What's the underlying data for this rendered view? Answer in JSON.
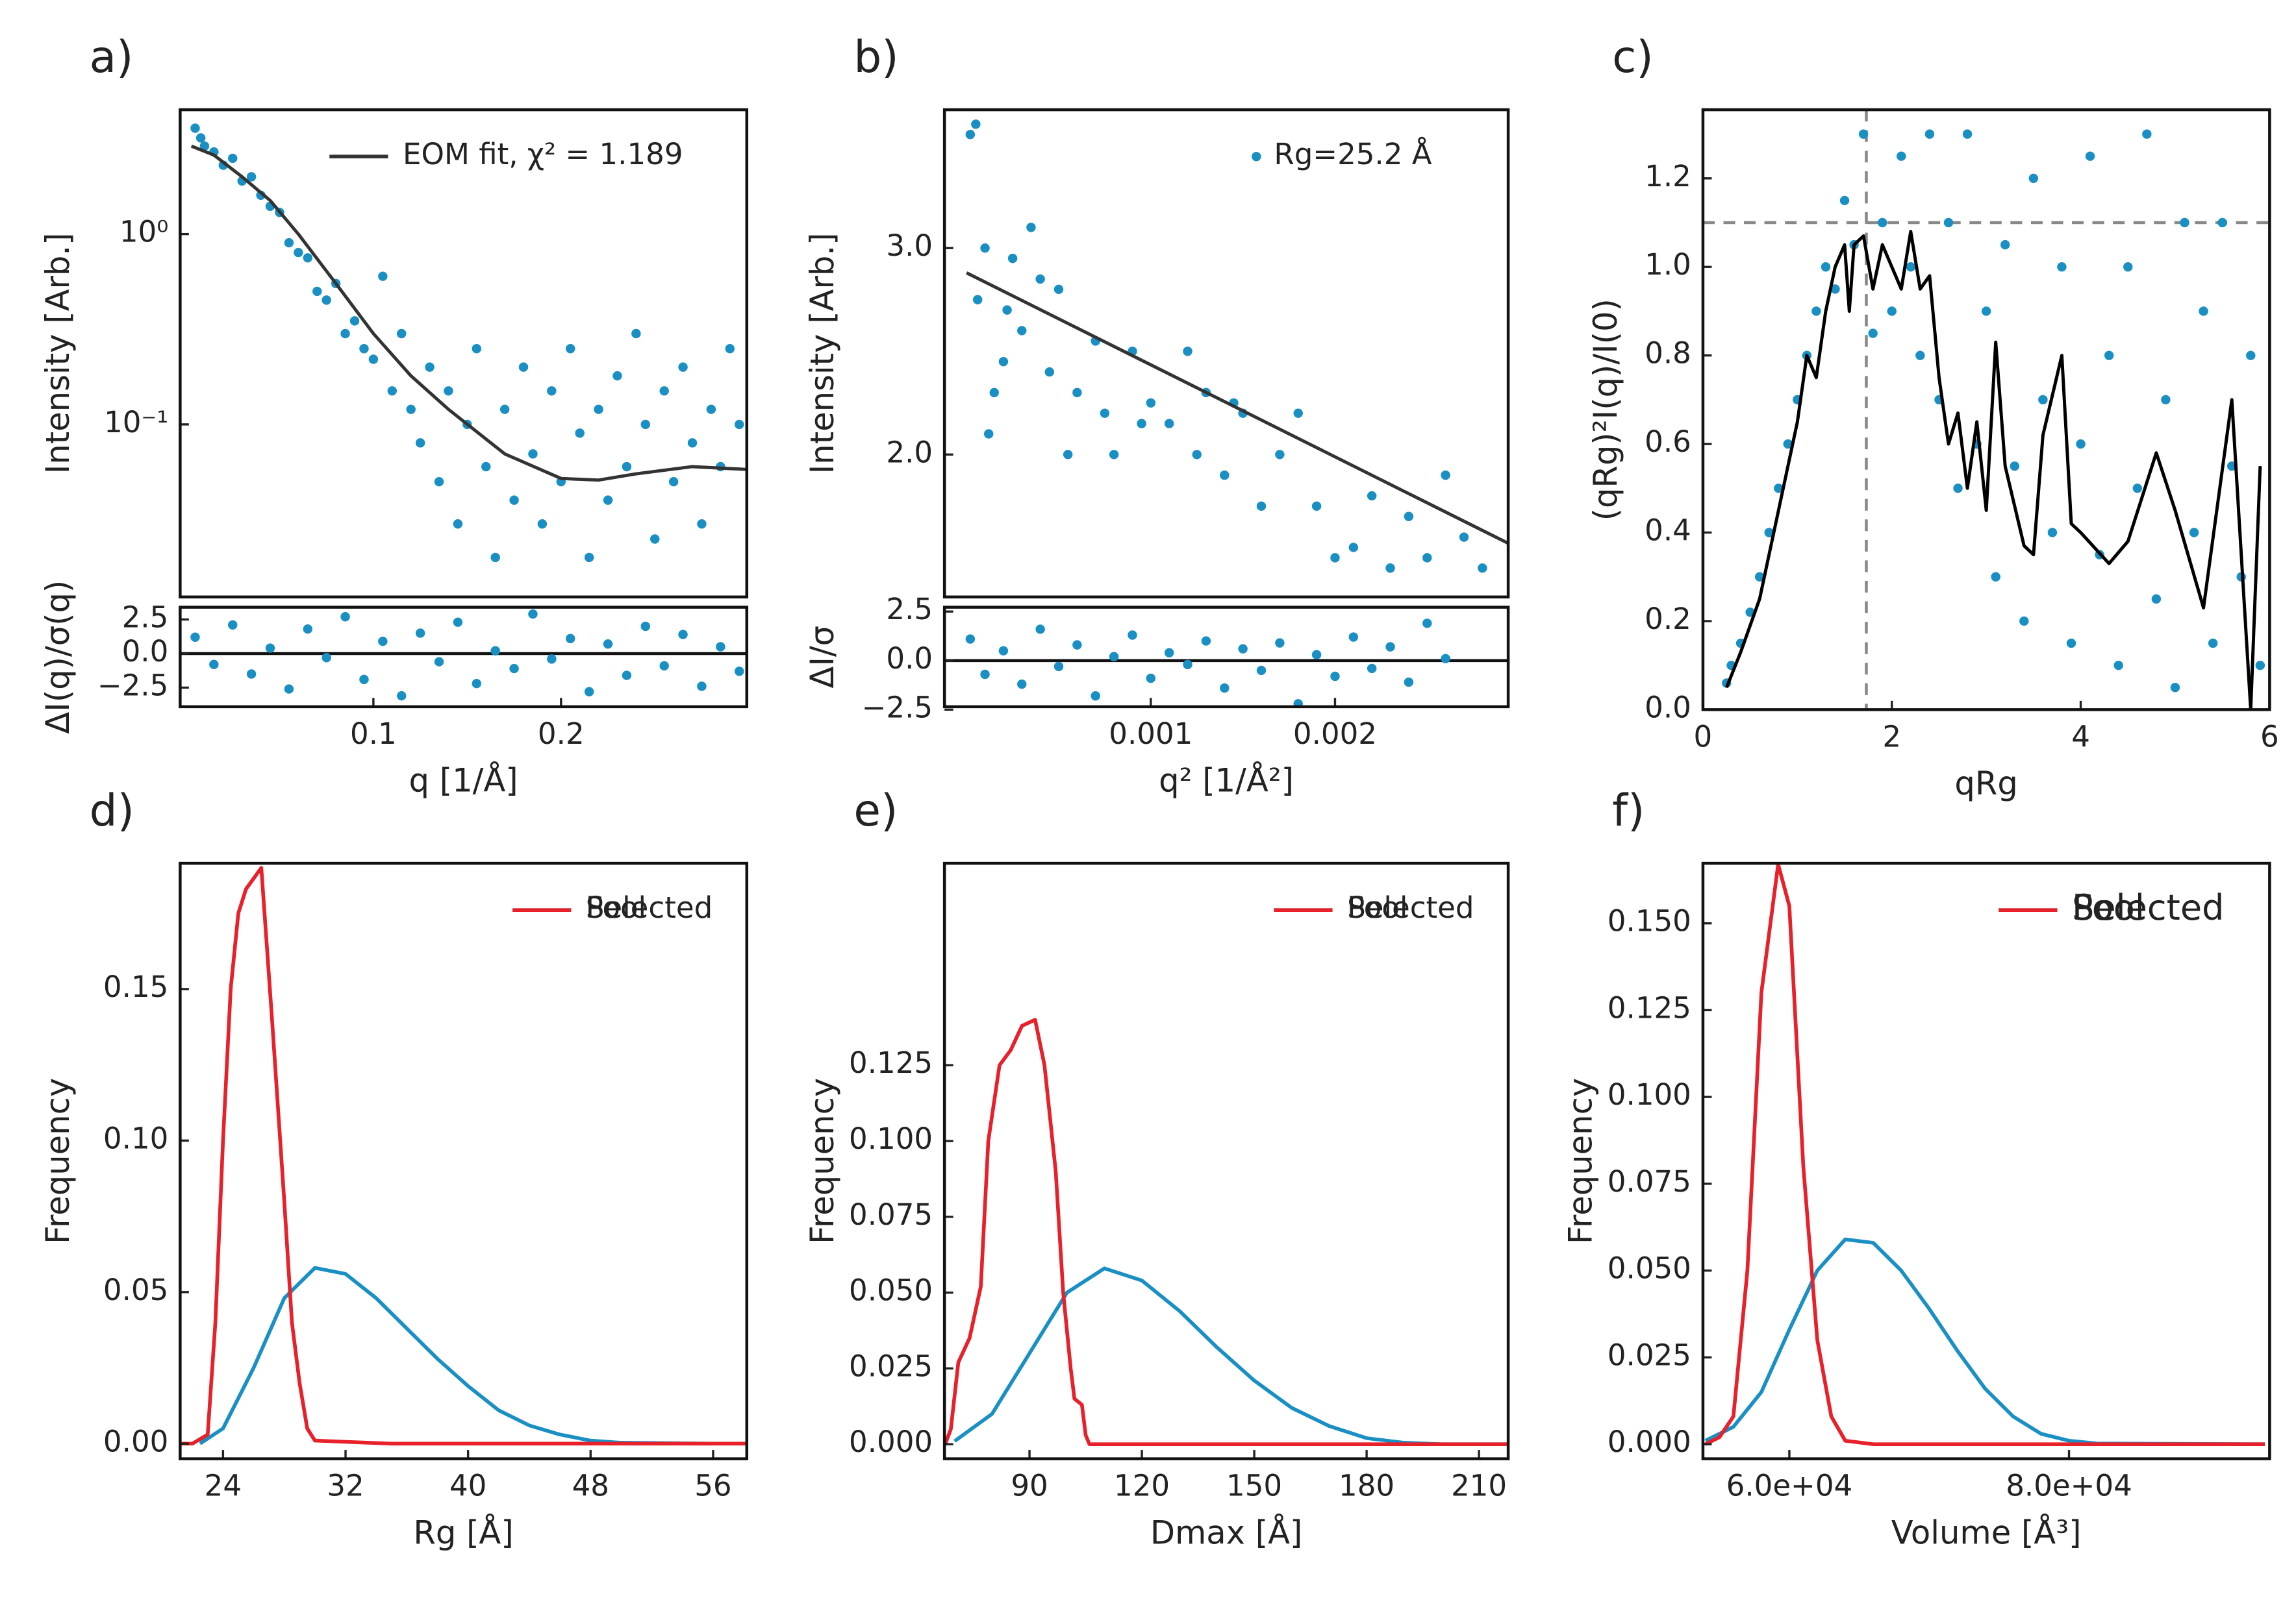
{
  "chart_data": [
    {
      "type": "scatter",
      "panel": "a)",
      "ylabel": "Intensity [Arb.]",
      "yscale": "log",
      "xlim": [
        -0.003,
        0.299
      ],
      "ylim": [
        0.0124,
        4.5
      ],
      "yticks": [
        {
          "value": 1,
          "label": "10⁰"
        },
        {
          "value": 0.1,
          "label": "10⁻¹"
        }
      ],
      "legend": "upper right",
      "series": [
        {
          "type": "scatter",
          "color": "#1a8fc4",
          "x": [
            0.005,
            0.008,
            0.01,
            0.015,
            0.02,
            0.025,
            0.03,
            0.035,
            0.04,
            0.045,
            0.05,
            0.055,
            0.06,
            0.065,
            0.07,
            0.075,
            0.08,
            0.085,
            0.09,
            0.095,
            0.1,
            0.105,
            0.11,
            0.115,
            0.12,
            0.125,
            0.13,
            0.135,
            0.14,
            0.145,
            0.15,
            0.155,
            0.16,
            0.165,
            0.17,
            0.175,
            0.18,
            0.185,
            0.19,
            0.195,
            0.2,
            0.205,
            0.21,
            0.215,
            0.22,
            0.225,
            0.23,
            0.235,
            0.24,
            0.245,
            0.25,
            0.255,
            0.26,
            0.265,
            0.27,
            0.275,
            0.28,
            0.285,
            0.29,
            0.295
          ],
          "values": [
            3.6,
            3.2,
            2.9,
            2.7,
            2.3,
            2.5,
            1.9,
            2.0,
            1.6,
            1.4,
            1.3,
            0.9,
            0.8,
            0.75,
            0.5,
            0.45,
            0.55,
            0.3,
            0.35,
            0.25,
            0.22,
            0.6,
            0.15,
            0.3,
            0.12,
            0.08,
            0.2,
            0.05,
            0.15,
            0.03,
            0.1,
            0.25,
            0.06,
            0.02,
            0.12,
            0.04,
            0.2,
            0.07,
            0.03,
            0.15,
            0.05,
            0.25,
            0.09,
            0.02,
            0.12,
            0.04,
            0.18,
            0.06,
            0.3,
            0.1,
            0.025,
            0.15,
            0.05,
            0.2,
            0.08,
            0.03,
            0.12,
            0.06,
            0.25,
            0.1
          ]
        },
        {
          "type": "line",
          "name": "EOM fit, χ² = 1.189",
          "color": "#333333",
          "x": [
            0.003,
            0.015,
            0.03,
            0.045,
            0.06,
            0.08,
            0.1,
            0.12,
            0.14,
            0.17,
            0.2,
            0.22,
            0.24,
            0.27,
            0.299
          ],
          "values": [
            2.9,
            2.6,
            2.0,
            1.5,
            1.0,
            0.55,
            0.3,
            0.18,
            0.12,
            0.07,
            0.052,
            0.051,
            0.055,
            0.06,
            0.058
          ]
        }
      ]
    },
    {
      "type": "scatter",
      "ylabel": "ΔI(q)/σ(q)",
      "xlabel": "q [1/Å]",
      "xlim": [
        -0.003,
        0.299
      ],
      "ylim": [
        -3.9,
        3.4
      ],
      "xticks": [
        0.1,
        0.2
      ],
      "yticks": [
        2.5,
        {
          "value": 0,
          "label": "0.0"
        },
        {
          "value": -2.5,
          "label": "−2.5"
        }
      ],
      "hline": 0,
      "series": [
        {
          "type": "scatter",
          "color": "#1a8fc4",
          "x": [
            0.005,
            0.015,
            0.025,
            0.035,
            0.045,
            0.055,
            0.065,
            0.075,
            0.085,
            0.095,
            0.105,
            0.115,
            0.125,
            0.135,
            0.145,
            0.155,
            0.165,
            0.175,
            0.185,
            0.195,
            0.205,
            0.215,
            0.225,
            0.235,
            0.245,
            0.255,
            0.265,
            0.275,
            0.285,
            0.295
          ],
          "values": [
            1.2,
            -0.8,
            2.1,
            -1.5,
            0.4,
            -2.6,
            1.8,
            -0.3,
            2.7,
            -1.9,
            0.9,
            -3.1,
            1.5,
            -0.6,
            2.3,
            -2.2,
            0.2,
            -1.1,
            2.9,
            -0.4,
            1.1,
            -2.8,
            0.7,
            -1.6,
            2.0,
            -0.9,
            1.4,
            -2.4,
            0.5,
            -1.3
          ]
        }
      ]
    },
    {
      "type": "scatter",
      "panel": "b)",
      "ylabel": "Intensity [Arb.]",
      "xlim": [
        -0.00012,
        0.00294
      ],
      "ylim": [
        1.31,
        3.67
      ],
      "yticks": [
        {
          "value": 3,
          "label": "3.0"
        },
        {
          "value": 2,
          "label": "2.0"
        }
      ],
      "legend": "upper right",
      "series": [
        {
          "type": "scatter",
          "name": "Rg=25.2 Å",
          "color": "#1a8fc4",
          "x": [
            2e-05,
            5e-05,
            6e-05,
            0.0001,
            0.00012,
            0.00015,
            0.0002,
            0.00022,
            0.00025,
            0.0003,
            0.00035,
            0.0004,
            0.00045,
            0.0005,
            0.00055,
            0.0006,
            0.0007,
            0.00075,
            0.0008,
            0.0009,
            0.00095,
            0.001,
            0.0011,
            0.0012,
            0.00125,
            0.0013,
            0.0014,
            0.00145,
            0.0015,
            0.0016,
            0.0017,
            0.0018,
            0.0019,
            0.002,
            0.0021,
            0.0022,
            0.0023,
            0.0024,
            0.0025,
            0.0026,
            0.0027,
            0.0028
          ],
          "values": [
            3.55,
            3.6,
            2.75,
            3.0,
            2.1,
            2.3,
            2.45,
            2.7,
            2.95,
            2.6,
            3.1,
            2.85,
            2.4,
            2.8,
            2.0,
            2.3,
            2.55,
            2.2,
            2.0,
            2.5,
            2.15,
            2.25,
            2.15,
            2.5,
            2.0,
            2.3,
            1.9,
            2.25,
            2.2,
            1.75,
            2.0,
            2.2,
            1.75,
            1.5,
            1.55,
            1.8,
            1.45,
            1.7,
            1.5,
            1.9,
            1.6,
            1.45
          ]
        },
        {
          "type": "line",
          "color": "#333333",
          "x": [
            0,
            0.00294
          ],
          "values": [
            2.88,
            1.57
          ]
        }
      ]
    },
    {
      "type": "scatter",
      "ylabel": "ΔI/σ",
      "xlabel": "q² [1/Å²]",
      "xlim": [
        -0.00012,
        0.00294
      ],
      "ylim": [
        -2.35,
        2.72
      ],
      "xticks": [
        0.001,
        0.002
      ],
      "yticks": [
        2.5,
        {
          "value": 0,
          "label": "0.0"
        },
        {
          "value": -2.5,
          "label": "−2.5"
        }
      ],
      "hline": 0,
      "series": [
        {
          "type": "scatter",
          "color": "#1a8fc4",
          "x": [
            2e-05,
            0.0001,
            0.0002,
            0.0003,
            0.0004,
            0.0005,
            0.0006,
            0.0007,
            0.0008,
            0.0009,
            0.001,
            0.0011,
            0.0012,
            0.0013,
            0.0014,
            0.0015,
            0.0016,
            0.0017,
            0.0018,
            0.0019,
            0.002,
            0.0021,
            0.0022,
            0.0023,
            0.0024,
            0.0025,
            0.0026
          ],
          "values": [
            1.1,
            -0.7,
            0.5,
            -1.2,
            1.6,
            -0.3,
            0.8,
            -1.8,
            0.2,
            1.3,
            -0.9,
            0.4,
            -0.2,
            1.0,
            -1.4,
            0.6,
            -0.5,
            0.9,
            -2.2,
            0.3,
            -0.8,
            1.2,
            -0.4,
            0.7,
            -1.1,
            1.9,
            0.1
          ]
        }
      ]
    },
    {
      "type": "scatter",
      "panel": "c)",
      "ylabel": "(qRg)²I(q)/I(0)",
      "xlabel": "qRg",
      "xlim": [
        0,
        6
      ],
      "ylim": [
        0,
        1.355
      ],
      "xticks": [
        0,
        2,
        4,
        6
      ],
      "yticks": [
        {
          "value": 0,
          "label": "0.0"
        },
        0.2,
        0.4,
        0.6,
        0.8,
        {
          "value": 1,
          "label": "1.0"
        },
        1.2
      ],
      "hline": 1.1,
      "vline": 1.73,
      "dashed": true,
      "series": [
        {
          "type": "scatter",
          "color": "#1a8fc4",
          "x": [
            0.25,
            0.3,
            0.4,
            0.5,
            0.6,
            0.7,
            0.8,
            0.9,
            1.0,
            1.1,
            1.2,
            1.3,
            1.4,
            1.5,
            1.6,
            1.7,
            1.8,
            1.9,
            2.0,
            2.1,
            2.2,
            2.3,
            2.4,
            2.5,
            2.6,
            2.7,
            2.8,
            2.9,
            3.0,
            3.1,
            3.2,
            3.3,
            3.4,
            3.5,
            3.6,
            3.7,
            3.8,
            3.9,
            4.0,
            4.1,
            4.2,
            4.3,
            4.4,
            4.5,
            4.6,
            4.7,
            4.8,
            4.9,
            5.0,
            5.1,
            5.2,
            5.3,
            5.4,
            5.5,
            5.6,
            5.7,
            5.8,
            5.9
          ],
          "values": [
            0.06,
            0.1,
            0.15,
            0.22,
            0.3,
            0.4,
            0.5,
            0.6,
            0.7,
            0.8,
            0.9,
            1.0,
            0.95,
            1.15,
            1.05,
            1.3,
            0.85,
            1.1,
            0.9,
            1.25,
            1.0,
            0.8,
            1.3,
            0.7,
            1.1,
            0.5,
            1.3,
            0.6,
            0.9,
            0.3,
            1.05,
            0.55,
            0.2,
            1.2,
            0.7,
            0.4,
            1.0,
            0.15,
            0.6,
            1.25,
            0.35,
            0.8,
            0.1,
            1.0,
            0.5,
            1.3,
            0.25,
            0.7,
            0.05,
            1.1,
            0.4,
            0.9,
            0.15,
            1.1,
            0.55,
            0.3,
            0.8,
            0.1
          ]
        },
        {
          "type": "line",
          "color": "#000000",
          "x": [
            0.25,
            0.4,
            0.6,
            0.8,
            1.0,
            1.1,
            1.2,
            1.3,
            1.4,
            1.5,
            1.55,
            1.6,
            1.7,
            1.8,
            1.9,
            2.0,
            2.1,
            2.2,
            2.3,
            2.4,
            2.5,
            2.6,
            2.7,
            2.8,
            2.9,
            3.0,
            3.1,
            3.2,
            3.4,
            3.5,
            3.6,
            3.8,
            3.9,
            4.0,
            4.3,
            4.5,
            4.8,
            5.0,
            5.3,
            5.6,
            5.8,
            5.9
          ],
          "values": [
            0.05,
            0.13,
            0.25,
            0.45,
            0.65,
            0.8,
            0.75,
            0.9,
            1.0,
            1.05,
            0.9,
            1.05,
            1.07,
            0.95,
            1.05,
            1.0,
            0.95,
            1.08,
            0.95,
            0.98,
            0.75,
            0.6,
            0.67,
            0.5,
            0.65,
            0.45,
            0.83,
            0.55,
            0.37,
            0.35,
            0.62,
            0.8,
            0.42,
            0.4,
            0.33,
            0.38,
            0.58,
            0.45,
            0.23,
            0.7,
            0.0,
            0.55
          ]
        }
      ]
    },
    {
      "type": "line",
      "panel": "d)",
      "ylabel": "Frequency",
      "xlabel": "Rg [Å]",
      "xlim": [
        21.2,
        58.2
      ],
      "ylim": [
        -0.005,
        0.1915
      ],
      "xticks": [
        24,
        32,
        40,
        48,
        56
      ],
      "yticks": [
        {
          "value": 0,
          "label": "0.00"
        },
        0.05,
        {
          "value": 0.1,
          "label": "0.10"
        },
        0.15
      ],
      "legend": "upper right",
      "series": [
        {
          "type": "line",
          "name": "Pool",
          "color": "#1a8fc4",
          "x": [
            22.5,
            24,
            26,
            28,
            30,
            32,
            34,
            36,
            38,
            40,
            42,
            44,
            46,
            48,
            50,
            56
          ],
          "values": [
            0,
            0.005,
            0.025,
            0.048,
            0.058,
            0.056,
            0.048,
            0.038,
            0.028,
            0.019,
            0.011,
            0.006,
            0.003,
            0.001,
            0.0003,
            0
          ]
        },
        {
          "type": "line",
          "name": "Selected",
          "color": "#e8202a",
          "x": [
            21.2,
            22,
            23,
            23.5,
            24,
            24.5,
            25,
            25.5,
            26.5,
            27.2,
            28,
            28.5,
            29,
            29.5,
            30,
            35,
            58.2
          ],
          "values": [
            0,
            0,
            0.003,
            0.04,
            0.1,
            0.15,
            0.175,
            0.183,
            0.19,
            0.14,
            0.08,
            0.04,
            0.02,
            0.005,
            0.001,
            0,
            0
          ]
        }
      ]
    },
    {
      "type": "line",
      "panel": "e)",
      "ylabel": "Frequency",
      "xlabel": "Dmax [Å]",
      "xlim": [
        67.3,
        217.8
      ],
      "ylim": [
        -0.0048,
        0.1916
      ],
      "xticks": [
        90,
        120,
        150,
        180,
        210
      ],
      "yticks": [
        {
          "value": 0,
          "label": "0.000"
        },
        0.025,
        {
          "value": 0.05,
          "label": "0.050"
        },
        0.075,
        {
          "value": 0.1,
          "label": "0.100"
        },
        0.125
      ],
      "legend": "upper right",
      "series": [
        {
          "type": "line",
          "name": "Pool",
          "color": "#1a8fc4",
          "x": [
            70,
            80,
            90,
            100,
            110,
            120,
            130,
            140,
            150,
            160,
            170,
            180,
            190,
            200,
            217.8
          ],
          "values": [
            0.001,
            0.01,
            0.03,
            0.05,
            0.058,
            0.054,
            0.044,
            0.032,
            0.021,
            0.012,
            0.006,
            0.002,
            0.0005,
            0,
            0
          ]
        },
        {
          "type": "line",
          "name": "Selected",
          "color": "#e8202a",
          "x": [
            67.5,
            69,
            71,
            74,
            77,
            79,
            82,
            85,
            88,
            91.5,
            94,
            97,
            99,
            101,
            102,
            104,
            105,
            106,
            217.8
          ],
          "values": [
            0,
            0.005,
            0.027,
            0.035,
            0.052,
            0.1,
            0.125,
            0.13,
            0.138,
            0.14,
            0.125,
            0.09,
            0.05,
            0.025,
            0.015,
            0.013,
            0.003,
            0,
            0
          ]
        }
      ]
    },
    {
      "type": "line",
      "panel": "f)",
      "ylabel": "Frequency",
      "xlabel": "Volume [Å³]",
      "xlim": [
        53822,
        94345
      ],
      "ylim": [
        -0.0042,
        0.1673
      ],
      "xticks": [
        {
          "value": 60000,
          "label": "6.0e+04"
        },
        {
          "value": 80000,
          "label": "8.0e+04"
        }
      ],
      "yticks": [
        {
          "value": 0,
          "label": "0.000"
        },
        0.025,
        {
          "value": 0.05,
          "label": "0.050"
        },
        0.075,
        {
          "value": 0.1,
          "label": "0.100"
        },
        0.125,
        {
          "value": 0.15,
          "label": "0.150"
        }
      ],
      "legend": "upper right",
      "series": [
        {
          "type": "line",
          "name": "Pool",
          "color": "#1a8fc4",
          "x": [
            54000,
            56000,
            58000,
            60000,
            62000,
            64000,
            66000,
            68000,
            70000,
            72000,
            74000,
            76000,
            78000,
            80000,
            82000,
            94000
          ],
          "values": [
            0.001,
            0.005,
            0.015,
            0.033,
            0.05,
            0.059,
            0.058,
            0.05,
            0.039,
            0.027,
            0.016,
            0.008,
            0.003,
            0.001,
            0.0002,
            0
          ]
        },
        {
          "type": "line",
          "name": "Selected",
          "color": "#e8202a",
          "x": [
            54000,
            55000,
            56000,
            57000,
            58000,
            59200,
            60000,
            61000,
            62000,
            63000,
            64000,
            66000,
            94000
          ],
          "values": [
            0,
            0.002,
            0.008,
            0.05,
            0.13,
            0.167,
            0.155,
            0.08,
            0.03,
            0.008,
            0.001,
            0,
            0
          ]
        }
      ]
    }
  ]
}
